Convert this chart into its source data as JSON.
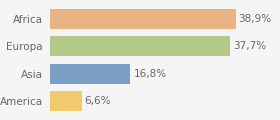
{
  "categories": [
    "America",
    "Asia",
    "Europa",
    "Africa"
  ],
  "values": [
    6.6,
    16.8,
    37.7,
    38.9
  ],
  "labels": [
    "6,6%",
    "16,8%",
    "37,7%",
    "38,9%"
  ],
  "bar_colors": [
    "#f2ca6e",
    "#7a9ec4",
    "#b3c98a",
    "#e8b484"
  ],
  "background_color": "#f5f5f5",
  "xlim": [
    0,
    47
  ],
  "bar_height": 0.72,
  "label_fontsize": 7.5,
  "tick_fontsize": 7.5,
  "tick_color": "#666666",
  "label_color": "#666666"
}
